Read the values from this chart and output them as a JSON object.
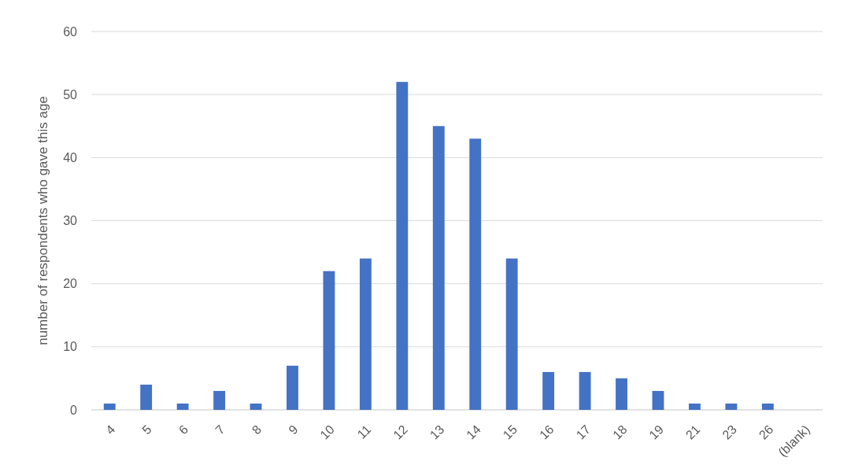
{
  "chart_data": {
    "type": "bar",
    "ylabel": "number of respondents who gave this age",
    "categories": [
      "4",
      "5",
      "6",
      "7",
      "8",
      "9",
      "10",
      "11",
      "12",
      "13",
      "14",
      "15",
      "16",
      "17",
      "18",
      "19",
      "21",
      "23",
      "26",
      "(blank)"
    ],
    "values": [
      1,
      4,
      1,
      3,
      1,
      7,
      22,
      24,
      52,
      45,
      43,
      24,
      6,
      6,
      5,
      3,
      1,
      1,
      1,
      0
    ],
    "color": "#4472c4",
    "ylim": [
      0,
      60
    ],
    "yticks": [
      0,
      10,
      20,
      30,
      40,
      50,
      60
    ],
    "grid": "y"
  }
}
